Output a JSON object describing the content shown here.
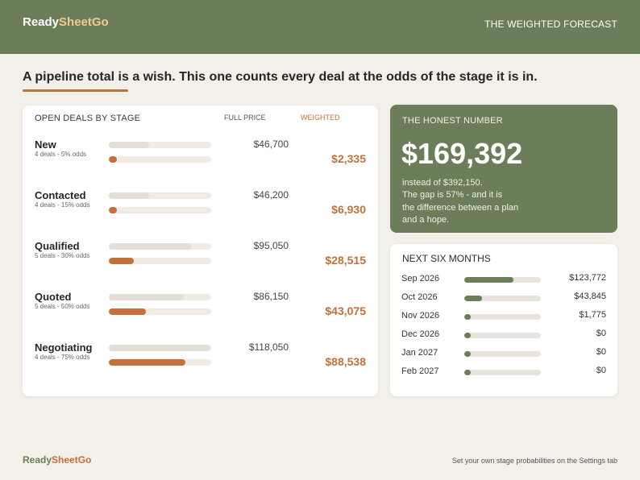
{
  "header": {
    "logo_ready": "Ready",
    "logo_sheet_go": "SheetGo",
    "title": "THE WEIGHTED FORECAST"
  },
  "headline": "A pipeline total is a wish. This one counts every deal at the odds of the stage it is in.",
  "deals_card": {
    "col_stage": "OPEN DEALS BY STAGE",
    "col_full": "FULL PRICE",
    "col_weighted": "WEIGHTED",
    "stages": [
      {
        "name": "New",
        "meta": "4 deals  -  5% odds",
        "full_price": "$46,700",
        "weighted": "$2,335",
        "full_frac": 0.395,
        "weighted_frac": 0.02
      },
      {
        "name": "Contacted",
        "meta": "4 deals  -  15% odds",
        "full_price": "$46,200",
        "weighted": "$6,930",
        "full_frac": 0.391,
        "weighted_frac": 0.059
      },
      {
        "name": "Qualified",
        "meta": "5 deals  -  30% odds",
        "full_price": "$95,050",
        "weighted": "$28,515",
        "full_frac": 0.805,
        "weighted_frac": 0.241
      },
      {
        "name": "Quoted",
        "meta": "5 deals  -  50% odds",
        "full_price": "$86,150",
        "weighted": "$43,075",
        "full_frac": 0.73,
        "weighted_frac": 0.365
      },
      {
        "name": "Negotiating",
        "meta": "4 deals  -  75% odds",
        "full_price": "$118,050",
        "weighted": "$88,538",
        "full_frac": 1.0,
        "weighted_frac": 0.75
      }
    ]
  },
  "honest": {
    "label": "THE HONEST NUMBER",
    "value": "$169,392",
    "line1": "instead of $392,150.",
    "line2": "The gap is 57% - and it is",
    "line3": "the difference between a plan",
    "line4": "and a hope."
  },
  "months": {
    "title": "NEXT SIX MONTHS",
    "rows": [
      {
        "label": "Sep 2026",
        "value": "$123,772",
        "frac": 0.64
      },
      {
        "label": "Oct 2026",
        "value": "$43,845",
        "frac": 0.23
      },
      {
        "label": "Nov 2026",
        "value": "$1,775",
        "frac": 0.0
      },
      {
        "label": "Dec 2026",
        "value": "$0",
        "frac": 0.0
      },
      {
        "label": "Jan 2027",
        "value": "$0",
        "frac": 0.0
      },
      {
        "label": "Feb 2027",
        "value": "$0",
        "frac": 0.0
      }
    ]
  },
  "footer": {
    "logo_ready": "Ready",
    "logo_sheet_go": "SheetGo",
    "note": "Set your own stage probabilities on the Settings tab"
  },
  "colors": {
    "brand_green": "#6b7d59",
    "accent_orange": "#c4703a",
    "background": "#f3efe9"
  }
}
